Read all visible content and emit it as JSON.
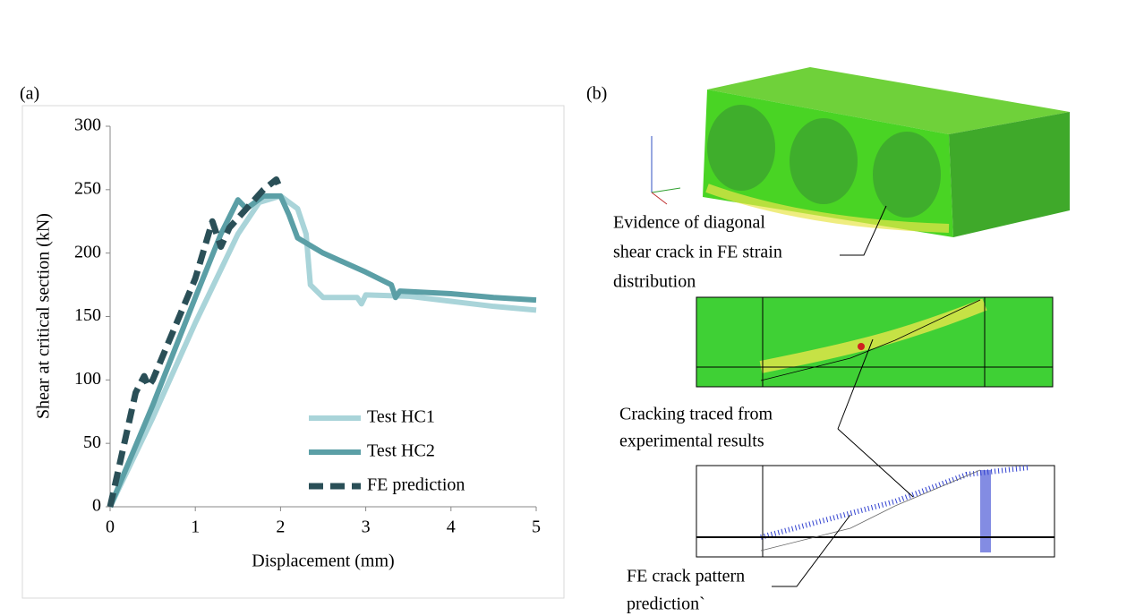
{
  "chart_data": {
    "type": "line",
    "xlabel": "Displacement (mm)",
    "ylabel": "Shear at critical section (kN)",
    "xlim": [
      0,
      5
    ],
    "xticks": [
      0,
      1,
      2,
      3,
      4,
      5
    ],
    "ylim": [
      0,
      300
    ],
    "yticks": [
      0,
      50,
      100,
      150,
      200,
      250,
      300
    ],
    "grid": false,
    "legend": "lower right",
    "series": [
      {
        "name": "Test HC1",
        "color": "#a9d4d9",
        "dash": false,
        "x": [
          0,
          0.5,
          1,
          1.5,
          1.75,
          2,
          2.2,
          2.3,
          2.35,
          2.5,
          2.9,
          2.95,
          3,
          3.5,
          4,
          4.5,
          5
        ],
        "values": [
          0,
          70,
          145,
          215,
          240,
          245,
          235,
          215,
          175,
          165,
          165,
          160,
          167,
          166,
          162,
          158,
          155
        ]
      },
      {
        "name": "Test HC2",
        "color": "#5b9fa6",
        "dash": false,
        "x": [
          0,
          0.5,
          1,
          1.3,
          1.5,
          1.6,
          1.8,
          2,
          2.1,
          2.2,
          2.5,
          3,
          3.3,
          3.35,
          3.4,
          4,
          4.5,
          5
        ],
        "values": [
          0,
          80,
          165,
          215,
          242,
          235,
          245,
          245,
          230,
          212,
          200,
          185,
          175,
          165,
          170,
          168,
          165,
          163
        ]
      },
      {
        "name": "FE prediction",
        "color": "#2a4f57",
        "dash": true,
        "x": [
          0,
          0.1,
          0.3,
          0.4,
          0.45,
          0.5,
          1,
          1.2,
          1.3,
          1.4,
          1.6,
          1.8,
          1.95,
          2
        ],
        "values": [
          0,
          30,
          90,
          103,
          95,
          100,
          180,
          225,
          205,
          220,
          235,
          250,
          258,
          250
        ]
      }
    ]
  },
  "panel_labels": [
    "(a)",
    "(b)"
  ],
  "annotations": [
    [
      "Evidence of diagonal",
      "shear crack in FE strain",
      "distribution"
    ],
    [
      "Cracking traced from",
      "experimental results"
    ],
    [
      "FE crack pattern",
      "prediction`"
    ]
  ]
}
